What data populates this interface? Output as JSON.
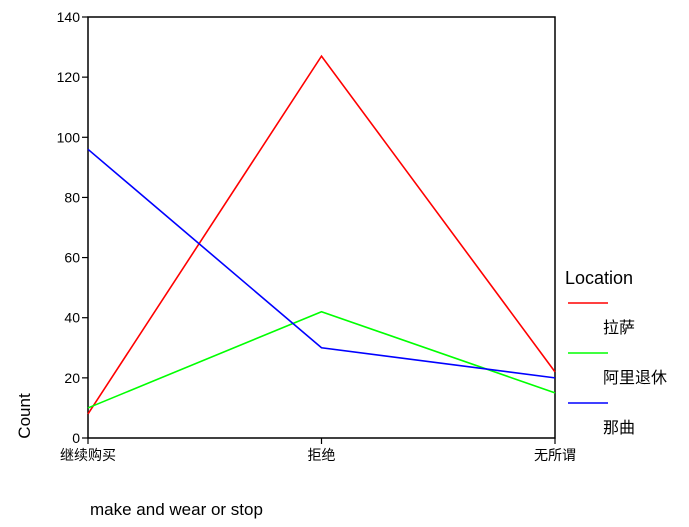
{
  "chart_data": {
    "type": "line",
    "xlabel": "make and wear or stop",
    "ylabel": "Count",
    "categories": [
      "继续购买",
      "拒绝",
      "无所谓"
    ],
    "ylim": [
      0,
      140
    ],
    "yticks": [
      0,
      20,
      40,
      60,
      80,
      100,
      120,
      140
    ],
    "grid": false,
    "legend": {
      "title": "Location",
      "position": "right"
    },
    "series": [
      {
        "name": "拉萨",
        "color": "#ff0000",
        "values": [
          8,
          127,
          22
        ]
      },
      {
        "name": "阿里退休",
        "color": "#00ff00",
        "values": [
          10,
          42,
          15
        ]
      },
      {
        "name": "那曲",
        "color": "#0000ff",
        "values": [
          96,
          30,
          20
        ]
      }
    ]
  }
}
